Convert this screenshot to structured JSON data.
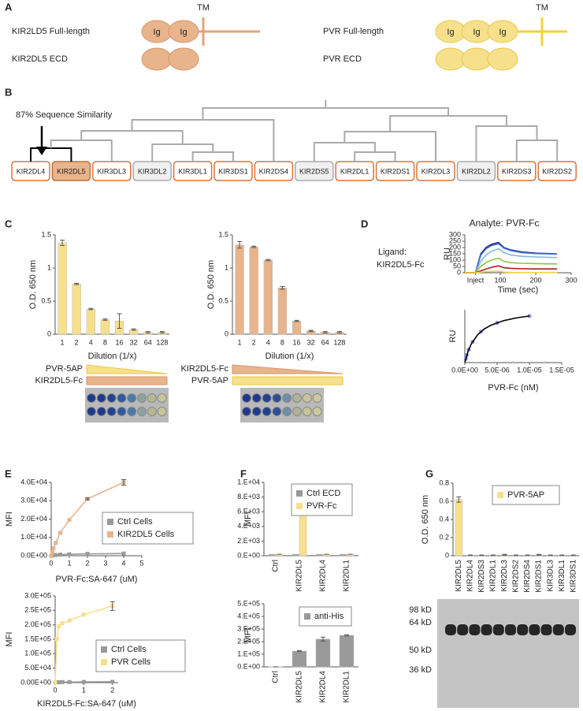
{
  "panel_a": {
    "label": "A",
    "kir_full": "KIR2LD5 Full-length",
    "kir_ecd": "KIR2DL5 ECD",
    "pvr_full": "PVR Full-length",
    "pvr_ecd": "PVR ECD",
    "tm": "TM",
    "ig": "Ig"
  },
  "panel_b": {
    "label": "B",
    "annotation": "87% Sequence Similarity",
    "leaves": [
      "KIR2DL4",
      "KIR2DL5",
      "KIR3DL3",
      "KIR3DL2",
      "KIR3DL1",
      "KIR3DS1",
      "KIR2DS4",
      "KIR2DS5",
      "KIR2DL1",
      "KIR2DS1",
      "KIR2DL3",
      "KIR2DL2",
      "KIR2DS3",
      "KIR2DS2"
    ]
  },
  "panel_c": {
    "label": "C",
    "left_gradient": [
      "PVR-5AP",
      "KIR2DL5-Fc"
    ],
    "right_gradient": [
      "KIR2DL5-Fc",
      "PVR-5AP"
    ]
  },
  "panel_d": {
    "label": "D",
    "ligand": [
      "Ligand:",
      "KIR2DL5-Fc"
    ]
  },
  "panel_e": {
    "label": "E"
  },
  "panel_f": {
    "label": "F"
  },
  "panel_g": {
    "label": "G",
    "blot_markers": [
      "98 kD",
      "64 kD",
      "50 kD",
      "36 kD"
    ]
  },
  "chart_data": [
    {
      "type": "bar",
      "ylabel": "O.D. 650 nm",
      "xlabel": "Dilution (1/x)",
      "categories": [
        "1",
        "2",
        "4",
        "8",
        "16",
        "32",
        "64",
        "128"
      ],
      "values": [
        1.38,
        0.76,
        0.38,
        0.22,
        0.2,
        0.07,
        0.03,
        0.03
      ],
      "errors": [
        0.04,
        0.01,
        0.01,
        0.01,
        0.11,
        0.01,
        0.01,
        0.01
      ],
      "color": "#f7e08c",
      "ylim": [
        0,
        1.5
      ],
      "yticks": [
        0,
        0.5,
        1,
        1.5
      ]
    },
    {
      "type": "bar",
      "ylabel": "O.D. 650 nm",
      "xlabel": "Dilution (1/x)",
      "categories": [
        "1",
        "2",
        "4",
        "8",
        "16",
        "32",
        "64",
        "128"
      ],
      "values": [
        1.35,
        1.32,
        1.12,
        0.7,
        0.2,
        0.05,
        0.03,
        0.03
      ],
      "errors": [
        0.05,
        0.01,
        0.01,
        0.02,
        0.01,
        0.01,
        0.01,
        0.01
      ],
      "color": "#e8b48c",
      "ylim": [
        0,
        1.5
      ],
      "yticks": [
        0,
        0.5,
        1,
        1.5
      ]
    },
    {
      "type": "line",
      "title": "Analyte: PVR-Fc",
      "ylabel": "RU",
      "xlabel": "Time (sec)",
      "x": [
        0,
        30,
        45,
        60,
        75,
        95,
        110,
        130,
        160,
        200,
        260
      ],
      "xlim": [
        0,
        300
      ],
      "xticks": [
        {
          "value": 30,
          "label": "Inject"
        },
        100,
        200,
        300
      ],
      "ylim": [
        0,
        300
      ],
      "yticks": [
        0,
        50,
        100,
        150,
        200,
        250,
        300
      ],
      "series": [
        {
          "color": "#1a237e",
          "values": [
            0,
            0,
            150,
            200,
            225,
            240,
            200,
            180,
            165,
            155,
            150
          ]
        },
        {
          "color": "#3f6fd8",
          "values": [
            0,
            0,
            140,
            190,
            215,
            230,
            195,
            175,
            160,
            152,
            148
          ]
        },
        {
          "color": "#7fb8ea",
          "values": [
            0,
            0,
            90,
            140,
            170,
            190,
            160,
            140,
            130,
            125,
            120
          ]
        },
        {
          "color": "#8cc63f",
          "values": [
            0,
            0,
            50,
            80,
            100,
            115,
            90,
            80,
            75,
            72,
            70
          ]
        },
        {
          "color": "#b0182b",
          "values": [
            0,
            0,
            15,
            30,
            42,
            55,
            40,
            35,
            32,
            30,
            30
          ]
        },
        {
          "color": "#f2d33a",
          "values": [
            0,
            0,
            5,
            8,
            10,
            12,
            5,
            3,
            2,
            2,
            2
          ]
        }
      ]
    },
    {
      "type": "scatter",
      "ylabel": "RU",
      "xlabel": "PVR-Fc (nM)",
      "xlim": [
        0,
        1.5e-05
      ],
      "xticks": [
        {
          "value": 0,
          "label": "0.0E+00"
        },
        {
          "value": 5e-06,
          "label": "5.0E-06"
        },
        {
          "value": 1e-05,
          "label": "1.0E-05"
        },
        {
          "value": 1.5e-05,
          "label": "1.5E-05"
        }
      ],
      "ylim": [
        0,
        170
      ],
      "series": [
        {
          "style": "marker",
          "color": "#8a8ae6",
          "x": [
            1.5e-07,
            3e-07,
            6e-07,
            1.2e-06,
            2.5e-06,
            5e-06,
            1e-05
          ],
          "values": [
            12,
            24,
            42,
            67,
            100,
            128,
            150
          ]
        },
        {
          "style": "line",
          "color": "#000000",
          "x": [
            0,
            5e-07,
            1e-06,
            2e-06,
            3e-06,
            4e-06,
            6e-06,
            8e-06,
            1e-05
          ],
          "values": [
            0,
            36,
            60,
            90,
            108,
            120,
            135,
            144,
            150
          ]
        }
      ]
    },
    {
      "type": "line",
      "ylabel": "MFI",
      "xlabel": "PVR-Fc:SA-647 (uM)",
      "x": [
        0,
        0.0625,
        0.125,
        0.25,
        0.5,
        1,
        2,
        4
      ],
      "xlim": [
        0,
        5
      ],
      "xticks": [
        0,
        1,
        2,
        3,
        4,
        5
      ],
      "ylim": [
        0,
        40000
      ],
      "yticks": [
        {
          "value": 0,
          "label": "0.0E+00"
        },
        {
          "value": 10000,
          "label": "1.0E+04"
        },
        {
          "value": 20000,
          "label": "2.0E+04"
        },
        {
          "value": 30000,
          "label": "3.0E+04"
        },
        {
          "value": 40000,
          "label": "4.0E+04"
        }
      ],
      "series": [
        {
          "name": "Ctrl Cells",
          "style": "line-marker",
          "color": "#999999",
          "values": [
            0,
            200,
            300,
            400,
            600,
            800,
            1000,
            1200
          ]
        },
        {
          "name": "KIR2DL5 Cells",
          "style": "line-marker",
          "color": "#e8b48c",
          "values": [
            0,
            2000,
            4000,
            7000,
            12500,
            19500,
            31000,
            40000
          ],
          "errors": [
            0,
            0,
            0,
            0,
            0,
            0,
            500,
            1500
          ]
        }
      ]
    },
    {
      "type": "line",
      "ylabel": "MFI",
      "xlabel": "KIR2DL5-Fc:SA-647 (uM)",
      "x": [
        0,
        0.0625,
        0.125,
        0.25,
        0.5,
        1,
        2
      ],
      "xlim": [
        0,
        2.2
      ],
      "xticks": [
        0,
        1,
        2
      ],
      "ylim": [
        0,
        300000
      ],
      "yticks": [
        {
          "value": 0,
          "label": "0.00E+00"
        },
        {
          "value": 50000,
          "label": "5.0E+04"
        },
        {
          "value": 100000,
          "label": "1.0E+05"
        },
        {
          "value": 150000,
          "label": "1.5E+05"
        },
        {
          "value": 200000,
          "label": "2.0E+05"
        },
        {
          "value": 250000,
          "label": "2.5E+05"
        },
        {
          "value": 300000,
          "label": "3.0E+05"
        }
      ],
      "series": [
        {
          "name": "Ctrl Cells",
          "style": "line-marker",
          "color": "#999999",
          "values": [
            0,
            1000,
            1500,
            2000,
            2000,
            2500,
            3000
          ]
        },
        {
          "name": "PVR Cells",
          "style": "line-marker",
          "color": "#f7e08c",
          "values": [
            0,
            150000,
            195000,
            205000,
            215000,
            235000,
            265000
          ],
          "errors": [
            0,
            0,
            0,
            0,
            0,
            0,
            15000
          ]
        }
      ]
    },
    {
      "type": "bar",
      "ylabel": "MFI",
      "categories": [
        "Ctrl",
        "KIR2DL5",
        "KIR2DL4",
        "KIR2DL1"
      ],
      "ylim": [
        0,
        10000
      ],
      "yticks": [
        {
          "value": 0,
          "label": "0.E+00"
        },
        {
          "value": 2000,
          "label": "2.E+03"
        },
        {
          "value": 4000,
          "label": "4.E+03"
        },
        {
          "value": 6000,
          "label": "6.E+03"
        },
        {
          "value": 8000,
          "label": "8.E+03"
        },
        {
          "value": 10000,
          "label": "1.E+04"
        }
      ],
      "series": [
        {
          "name": "Ctrl ECD",
          "color": "#999999",
          "values": [
            200,
            200,
            200,
            200
          ]
        },
        {
          "name": "PVR-Fc",
          "color": "#f7e08c",
          "values": [
            200,
            8500,
            200,
            200
          ],
          "errors": [
            0,
            350,
            0,
            0
          ]
        }
      ]
    },
    {
      "type": "bar",
      "ylabel": "MFI",
      "categories": [
        "Ctrl",
        "KIR2DL5",
        "KIR2DL4",
        "KIR2DL1"
      ],
      "ylim": [
        0,
        500000
      ],
      "yticks": [
        {
          "value": 0,
          "label": "0.E+00"
        },
        {
          "value": 100000,
          "label": "1.E+05"
        },
        {
          "value": 200000,
          "label": "2.E+05"
        },
        {
          "value": 300000,
          "label": "3.E+05"
        },
        {
          "value": 400000,
          "label": "4.E+05"
        },
        {
          "value": 500000,
          "label": "5.E+05"
        }
      ],
      "series": [
        {
          "name": "anti-His",
          "color": "#999999",
          "values": [
            1000,
            125000,
            220000,
            250000
          ],
          "errors": [
            0,
            4000,
            15000,
            5000
          ]
        }
      ]
    },
    {
      "type": "bar",
      "ylabel": "O.D. 650 nm",
      "categories": [
        "KIR2DL5",
        "KIR2DL4",
        "KIR2DS3",
        "KIR2DL1",
        "KIR2DL3",
        "KIR2DS2",
        "KIR2DS4",
        "KIR2DS1",
        "KIR3DL3",
        "KIR3DL1",
        "KIR3DS1"
      ],
      "ylim": [
        0,
        0.8
      ],
      "yticks": [
        0,
        0.2,
        0.4,
        0.6,
        0.8
      ],
      "series": [
        {
          "name": "PVR-5AP",
          "color": "#f7e08c",
          "values": [
            0.62,
            0.005,
            0.005,
            0.005,
            0.01,
            0.005,
            0.005,
            0.01,
            0.005,
            0.005,
            0.005
          ],
          "errors": [
            0.03,
            0.003,
            0.003,
            0.003,
            0.005,
            0.003,
            0.003,
            0.005,
            0.003,
            0.003,
            0.003
          ]
        }
      ]
    }
  ]
}
